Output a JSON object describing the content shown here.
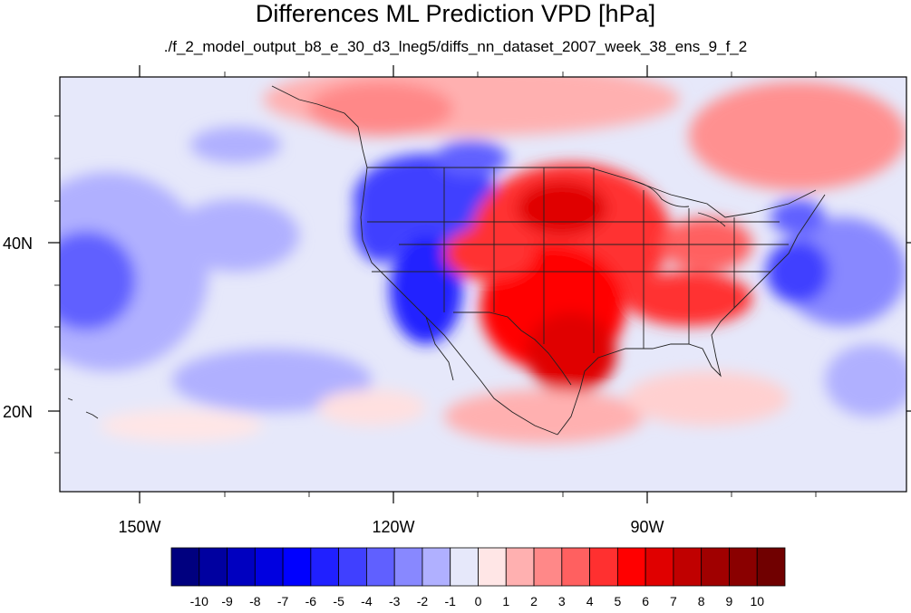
{
  "title": "Differences ML Prediction VPD [hPa]",
  "subtitle": "./f_2_model_output_b8_e_30_d3_lneg5/diffs_nn_dataset_2007_week_38_ens_9_f_2",
  "map": {
    "lon_labels": [
      "150W",
      "120W",
      "90W"
    ],
    "lat_labels": [
      "40N",
      "20N"
    ],
    "background_color": "#e6e8fa"
  },
  "colorbar": {
    "colors": [
      "#00007f",
      "#0000a0",
      "#0000c0",
      "#0000e0",
      "#0000ff",
      "#2020ff",
      "#4040ff",
      "#6060ff",
      "#8888ff",
      "#b0b0ff",
      "#e6e8fa",
      "#ffe6e6",
      "#ffb0b0",
      "#ff8888",
      "#ff6060",
      "#ff3030",
      "#ff0000",
      "#e00000",
      "#c00000",
      "#a00000",
      "#8a0000",
      "#700000"
    ],
    "labels": [
      "-10",
      "-9",
      "-8",
      "-7",
      "-6",
      "-5",
      "-4",
      "-3",
      "-2",
      "-1",
      "0",
      "1",
      "2",
      "3",
      "4",
      "5",
      "6",
      "7",
      "8",
      "9",
      "10"
    ]
  }
}
